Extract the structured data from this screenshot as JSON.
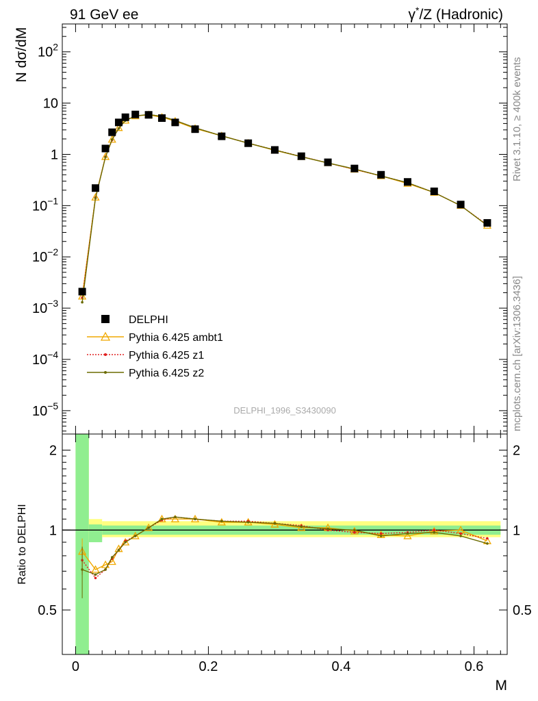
{
  "header": {
    "title_left": "91 GeV ee",
    "title_right_sup_left": "γ",
    "title_right_sup_star": "*",
    "title_right_rest": "/Z (Hadronic)"
  },
  "side": {
    "rivet_label": "Rivet 3.1.10, ≥ 400k events",
    "mcplots_label": "mcplots.cern.ch [arXiv:1306.3436]"
  },
  "watermark": "DELPHI_1996_S3430090",
  "colors": {
    "data": "#000000",
    "ambt1": "#f0a800",
    "z1": "#e02020",
    "z2": "#6b6b00",
    "band_stat": "#90ee90",
    "band_syst": "#ffff80"
  },
  "chart_data": [
    {
      "type": "scatter",
      "name": "main",
      "ylabel": "N dσ/dM",
      "yscale": "log",
      "ylim": [
        3.5e-06,
        350
      ],
      "xlim": [
        -0.02,
        0.65
      ],
      "y_ticks": [
        {
          "value": 100,
          "base": "10",
          "exp": "2"
        },
        {
          "value": 10,
          "base": "10",
          "exp": ""
        },
        {
          "value": 1,
          "base": "1",
          "exp": ""
        },
        {
          "value": 0.1,
          "base": "10",
          "exp": "−1"
        },
        {
          "value": 0.01,
          "base": "10",
          "exp": "−2"
        },
        {
          "value": 0.001,
          "base": "10",
          "exp": "−3"
        },
        {
          "value": 0.0001,
          "base": "10",
          "exp": "−4"
        },
        {
          "value": 1e-05,
          "base": "10",
          "exp": "−5"
        }
      ],
      "legend": {
        "placement": "lower-left",
        "entries": [
          {
            "label": "DELPHI",
            "key": "data"
          },
          {
            "label": "Pythia 6.425 ambt1",
            "key": "ambt1"
          },
          {
            "label": "Pythia 6.425 z1",
            "key": "z1"
          },
          {
            "label": "Pythia 6.425 z2",
            "key": "z2"
          }
        ]
      },
      "x": [
        0.01,
        0.03,
        0.045,
        0.055,
        0.065,
        0.075,
        0.09,
        0.11,
        0.13,
        0.15,
        0.18,
        0.22,
        0.26,
        0.3,
        0.34,
        0.38,
        0.42,
        0.46,
        0.5,
        0.54,
        0.58,
        0.62
      ],
      "series": [
        {
          "name": "DELPHI",
          "key": "data",
          "values": [
            0.0021,
            0.22,
            1.3,
            2.7,
            4.2,
            5.3,
            6.0,
            5.9,
            5.1,
            4.2,
            3.1,
            2.25,
            1.65,
            1.22,
            0.92,
            0.7,
            0.53,
            0.4,
            0.29,
            0.19,
            0.105,
            0.046
          ]
        },
        {
          "name": "Pythia 6.425 ambt1",
          "key": "ambt1",
          "values": [
            0.0017,
            0.145,
            0.9,
            1.95,
            3.3,
            4.6,
            5.6,
            5.9,
            5.3,
            4.45,
            3.2,
            2.3,
            1.65,
            1.2,
            0.9,
            0.68,
            0.51,
            0.38,
            0.27,
            0.18,
            0.1,
            0.041
          ]
        },
        {
          "name": "Pythia 6.425 z1",
          "key": "z1",
          "values": [
            0.0016,
            0.143,
            0.9,
            1.9,
            3.2,
            4.6,
            5.6,
            6.0,
            5.5,
            4.6,
            3.3,
            2.3,
            1.66,
            1.22,
            0.91,
            0.68,
            0.51,
            0.38,
            0.28,
            0.18,
            0.1,
            0.042
          ]
        },
        {
          "name": "Pythia 6.425 z2",
          "key": "z2",
          "values": [
            0.0013,
            0.14,
            0.88,
            1.95,
            3.2,
            4.55,
            5.6,
            6.0,
            5.5,
            4.6,
            3.3,
            2.3,
            1.65,
            1.22,
            0.9,
            0.68,
            0.52,
            0.38,
            0.28,
            0.18,
            0.1,
            0.041
          ]
        }
      ]
    },
    {
      "type": "line",
      "name": "ratio",
      "ylabel": "Ratio to DELPHI",
      "xlabel": "M",
      "ylim": [
        0.34,
        2.3
      ],
      "xlim": [
        -0.02,
        0.65
      ],
      "y_ticks": [
        {
          "value": 0.5,
          "label": "0.5"
        },
        {
          "value": 1,
          "label": "1"
        },
        {
          "value": 2,
          "label": "2"
        }
      ],
      "x_ticks": [
        {
          "value": 0,
          "label": "0"
        },
        {
          "value": 0.2,
          "label": "0.2"
        },
        {
          "value": 0.4,
          "label": "0.4"
        },
        {
          "value": 0.6,
          "label": "0.6"
        }
      ],
      "bands": {
        "edges": [
          0.0,
          0.02,
          0.04,
          0.64
        ],
        "stat_low": [
          0.34,
          0.9,
          0.98
        ],
        "stat_high": [
          2.3,
          1.05,
          1.02
        ],
        "syst_low": [
          0.34,
          0.92,
          0.97
        ],
        "syst_high": [
          2.3,
          1.1,
          1.03
        ],
        "stat_wide_low": [
          0.96
        ],
        "stat_wide_high": [
          1.04
        ],
        "syst_wide_low": [
          0.94
        ],
        "syst_wide_high": [
          1.08
        ]
      },
      "x": [
        0.01,
        0.03,
        0.045,
        0.055,
        0.065,
        0.075,
        0.09,
        0.11,
        0.13,
        0.15,
        0.18,
        0.22,
        0.26,
        0.3,
        0.34,
        0.38,
        0.42,
        0.46,
        0.5,
        0.54,
        0.58,
        0.62
      ],
      "series": [
        {
          "name": "Pythia 6.425 ambt1",
          "key": "ambt1",
          "values": [
            0.83,
            0.71,
            0.74,
            0.76,
            0.85,
            0.9,
            0.95,
            1.02,
            1.1,
            1.1,
            1.1,
            1.07,
            1.07,
            1.05,
            1.02,
            1.02,
            0.99,
            0.96,
            0.95,
            0.99,
            1.0,
            0.91
          ]
        },
        {
          "name": "Pythia 6.425 z1",
          "key": "z1",
          "values": [
            0.77,
            0.66,
            0.71,
            0.78,
            0.84,
            0.91,
            0.95,
            1.02,
            1.09,
            1.12,
            1.1,
            1.08,
            1.08,
            1.06,
            1.04,
            1.0,
            0.98,
            0.97,
            0.98,
            1.0,
            0.97,
            0.93
          ]
        },
        {
          "name": "Pythia 6.425 z2",
          "key": "z2",
          "values": [
            0.71,
            0.68,
            0.71,
            0.79,
            0.84,
            0.9,
            0.95,
            1.02,
            1.1,
            1.12,
            1.1,
            1.08,
            1.07,
            1.06,
            1.03,
            1.01,
            1.0,
            0.95,
            0.97,
            0.98,
            0.95,
            0.89
          ]
        }
      ]
    }
  ]
}
